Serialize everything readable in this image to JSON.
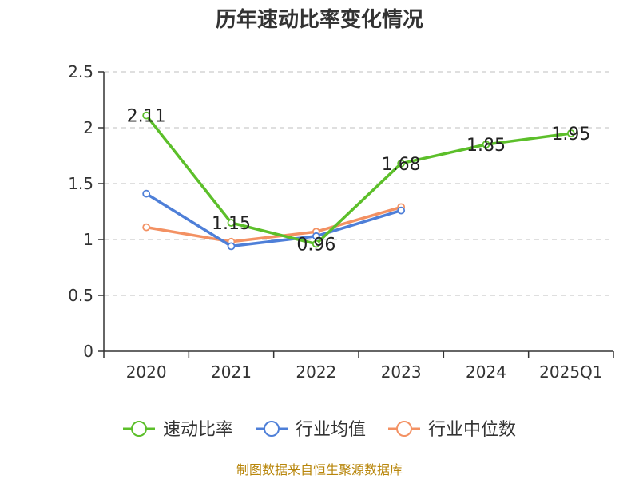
{
  "chart_data": {
    "type": "line",
    "title": "历年速动比率变化情况",
    "categories": [
      "2020",
      "2021",
      "2022",
      "2023",
      "2024",
      "2025Q1"
    ],
    "ylim": [
      0,
      2.5
    ],
    "yticks": [
      "0",
      "0.5",
      "1",
      "1.5",
      "2",
      "2.5"
    ],
    "grid": true,
    "legend_position": "bottom",
    "series": [
      {
        "name": "速动比率",
        "color": "#5cbf2a",
        "values": [
          2.11,
          1.15,
          0.96,
          1.68,
          1.85,
          1.95
        ],
        "labels": [
          "2.11",
          "1.15",
          "0.96",
          "1.68",
          "1.85",
          "1.95"
        ]
      },
      {
        "name": "行业均值",
        "color": "#4e7fd8",
        "values": [
          1.41,
          0.94,
          1.03,
          1.26,
          null,
          null
        ]
      },
      {
        "name": "行业中位数",
        "color": "#f39163",
        "values": [
          1.11,
          0.98,
          1.07,
          1.29,
          null,
          null
        ]
      }
    ]
  },
  "source_text": "制图数据来自恒生聚源数据库"
}
